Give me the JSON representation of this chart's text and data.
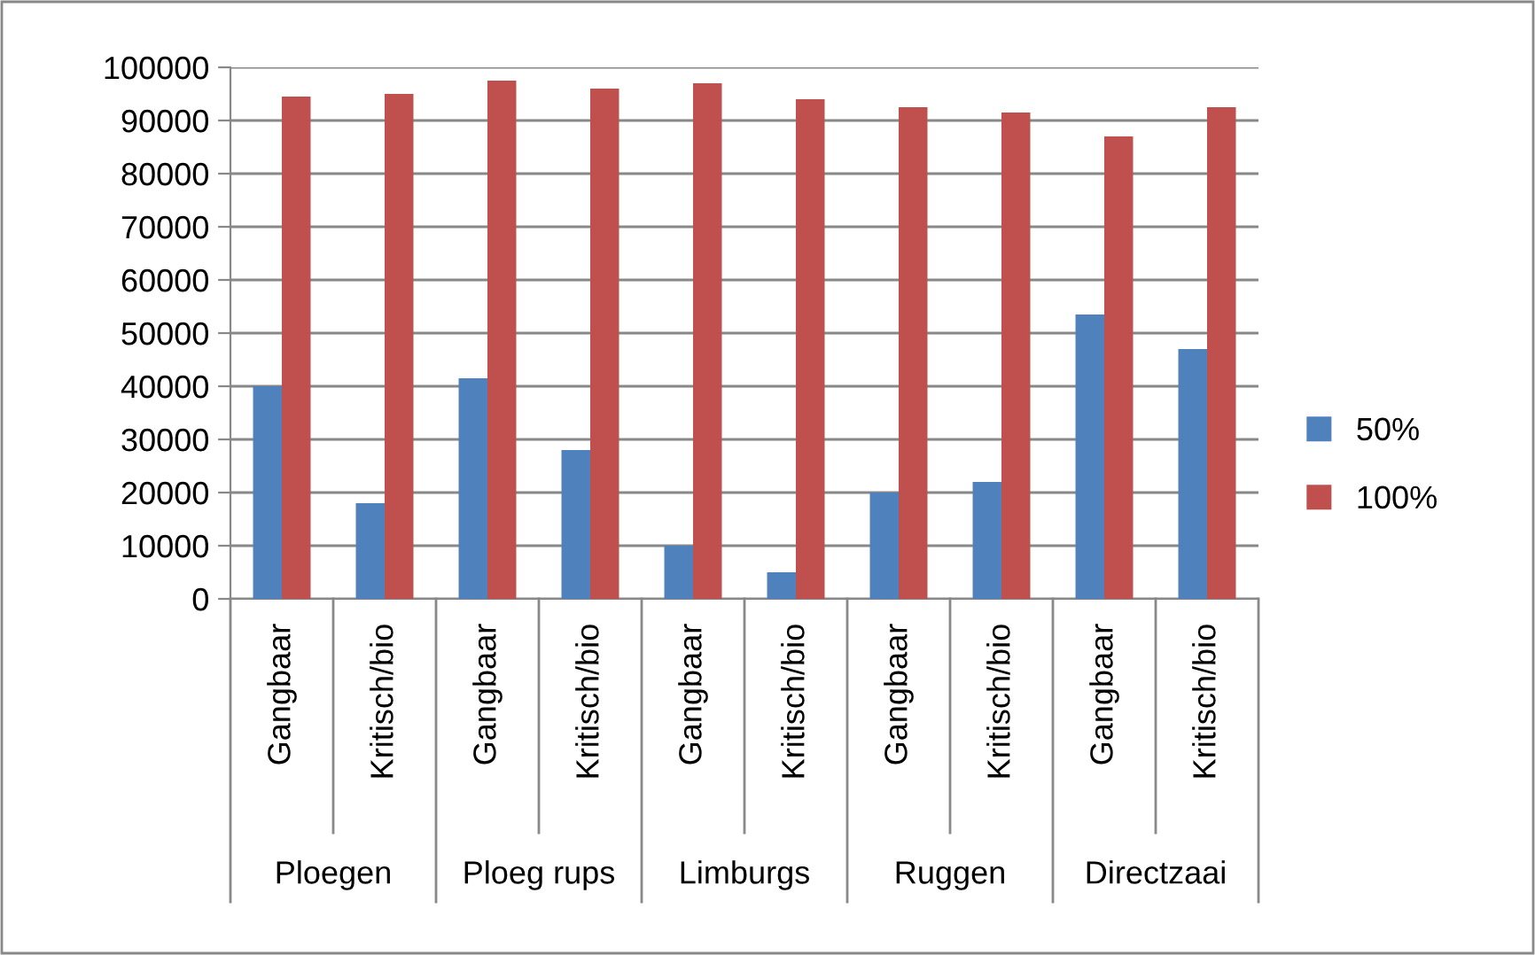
{
  "chart_data": {
    "type": "bar",
    "categories": [
      "Gangbaar",
      "Kritisch/bio",
      "Gangbaar",
      "Kritisch/bio",
      "Gangbaar",
      "Kritisch/bio",
      "Gangbaar",
      "Kritisch/bio",
      "Gangbaar",
      "Kritisch/bio"
    ],
    "series": [
      {
        "name": "50%",
        "color": "#4f81bd",
        "values": [
          40000,
          18000,
          41500,
          28000,
          10000,
          5000,
          20000,
          22000,
          53500,
          47000
        ]
      },
      {
        "name": "100%",
        "color": "#c0504d",
        "values": [
          94500,
          95000,
          97500,
          96000,
          97000,
          94000,
          92500,
          91500,
          87000,
          92500
        ]
      }
    ],
    "annotations": [
      "Ploegen",
      "Ploeg rups",
      "Limburgs",
      "Ruggen",
      "Directzaai"
    ],
    "ylim": [
      0,
      100000
    ],
    "yticks": [
      0,
      10000,
      20000,
      30000,
      40000,
      50000,
      60000,
      70000,
      80000,
      90000,
      100000
    ],
    "grid": "y",
    "legend": "right"
  }
}
